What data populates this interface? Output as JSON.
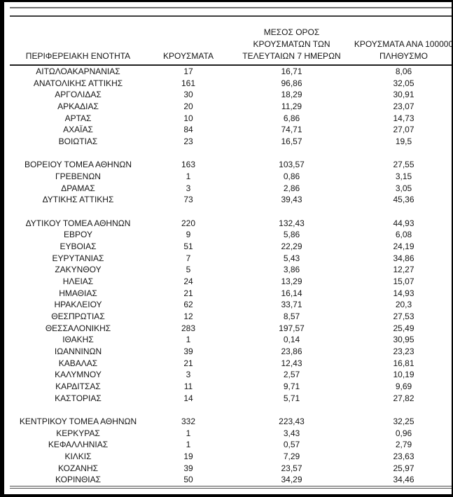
{
  "colors": {
    "frame": "#000000",
    "text": "#151515",
    "rule_light": "#6e6e6e",
    "rule_dark": "#3d3d3d",
    "rule_header": "#1f1f1f",
    "rule_bottom": "#4f4f4f"
  },
  "table": {
    "header": {
      "region": "ΠΕΡΙΦΕΡΕΙΑΚΗ ΕΝΟΤΗΤΑ",
      "cases": "ΚΡΟΥΣΜΑΤΑ",
      "avg7_lines": [
        "ΜΕΣΟΣ ΟΡΟΣ",
        "ΚΡΟΥΣΜΑΤΩΝ ΤΩΝ",
        "ΤΕΛΕΥΤΑΙΩΝ 7 ΗΜΕΡΩΝ"
      ],
      "per100k_lines": [
        "ΚΡΟΥΣΜΑΤΑ ΑΝΑ 100000",
        "ΠΛΗΘΥΣΜΟ"
      ]
    },
    "groups": [
      {
        "rows": [
          {
            "region": "ΑΙΤΩΛΟΑΚΑΡΝΑΝΙΑΣ",
            "cases": "17",
            "avg7": "16,71",
            "per100k": "8,06"
          },
          {
            "region": "ΑΝΑΤΟΛΙΚΗΣ ΑΤΤΙΚΗΣ",
            "cases": "161",
            "avg7": "96,86",
            "per100k": "32,05"
          },
          {
            "region": "ΑΡΓΟΛΙΔΑΣ",
            "cases": "30",
            "avg7": "18,29",
            "per100k": "30,91"
          },
          {
            "region": "ΑΡΚΑΔΙΑΣ",
            "cases": "20",
            "avg7": "11,29",
            "per100k": "23,07"
          },
          {
            "region": "ΑΡΤΑΣ",
            "cases": "10",
            "avg7": "6,86",
            "per100k": "14,73"
          },
          {
            "region": "ΑΧΑΪΑΣ",
            "cases": "84",
            "avg7": "74,71",
            "per100k": "27,07"
          },
          {
            "region": "ΒΟΙΩΤΙΑΣ",
            "cases": "23",
            "avg7": "16,57",
            "per100k": "19,5"
          }
        ]
      },
      {
        "rows": [
          {
            "region": "ΒΟΡΕΙΟΥ ΤΟΜΕΑ ΑΘΗΝΩΝ",
            "cases": "163",
            "avg7": "103,57",
            "per100k": "27,55"
          },
          {
            "region": "ΓΡΕΒΕΝΩΝ",
            "cases": "1",
            "avg7": "0,86",
            "per100k": "3,15"
          },
          {
            "region": "ΔΡΑΜΑΣ",
            "cases": "3",
            "avg7": "2,86",
            "per100k": "3,05"
          },
          {
            "region": "ΔΥΤΙΚΗΣ ΑΤΤΙΚΗΣ",
            "cases": "73",
            "avg7": "39,43",
            "per100k": "45,36"
          }
        ]
      },
      {
        "rows": [
          {
            "region": "ΔΥΤΙΚΟΥ ΤΟΜΕΑ ΑΘΗΝΩΝ",
            "cases": "220",
            "avg7": "132,43",
            "per100k": "44,93"
          },
          {
            "region": "ΕΒΡΟΥ",
            "cases": "9",
            "avg7": "5,86",
            "per100k": "6,08"
          },
          {
            "region": "ΕΥΒΟΙΑΣ",
            "cases": "51",
            "avg7": "22,29",
            "per100k": "24,19"
          },
          {
            "region": "ΕΥΡΥΤΑΝΙΑΣ",
            "cases": "7",
            "avg7": "5,43",
            "per100k": "34,86"
          },
          {
            "region": "ΖΑΚΥΝΘΟΥ",
            "cases": "5",
            "avg7": "3,86",
            "per100k": "12,27"
          },
          {
            "region": "ΗΛΕΙΑΣ",
            "cases": "24",
            "avg7": "13,29",
            "per100k": "15,07"
          },
          {
            "region": "ΗΜΑΘΙΑΣ",
            "cases": "21",
            "avg7": "16,14",
            "per100k": "14,93"
          },
          {
            "region": "ΗΡΑΚΛΕΙΟΥ",
            "cases": "62",
            "avg7": "33,71",
            "per100k": "20,3"
          },
          {
            "region": "ΘΕΣΠΡΩΤΙΑΣ",
            "cases": "12",
            "avg7": "8,57",
            "per100k": "27,53"
          },
          {
            "region": "ΘΕΣΣΑΛΟΝΙΚΗΣ",
            "cases": "283",
            "avg7": "197,57",
            "per100k": "25,49"
          },
          {
            "region": "ΙΘΑΚΗΣ",
            "cases": "1",
            "avg7": "0,14",
            "per100k": "30,95"
          },
          {
            "region": "ΙΩΑΝΝΙΝΩΝ",
            "cases": "39",
            "avg7": "23,86",
            "per100k": "23,23"
          },
          {
            "region": "ΚΑΒΑΛΑΣ",
            "cases": "21",
            "avg7": "12,43",
            "per100k": "16,81"
          },
          {
            "region": "ΚΑΛΥΜΝΟΥ",
            "cases": "3",
            "avg7": "2,57",
            "per100k": "10,19"
          },
          {
            "region": "ΚΑΡΔΙΤΣΑΣ",
            "cases": "11",
            "avg7": "9,71",
            "per100k": "9,69"
          },
          {
            "region": "ΚΑΣΤΟΡΙΑΣ",
            "cases": "14",
            "avg7": "5,71",
            "per100k": "27,82"
          }
        ]
      },
      {
        "rows": [
          {
            "region": "ΚΕΝΤΡΙΚΟΥ ΤΟΜΕΑ ΑΘΗΝΩΝ",
            "cases": "332",
            "avg7": "223,43",
            "per100k": "32,25"
          },
          {
            "region": "ΚΕΡΚΥΡΑΣ",
            "cases": "1",
            "avg7": "3,43",
            "per100k": "0,96"
          },
          {
            "region": "ΚΕΦΑΛΛΗΝΙΑΣ",
            "cases": "1",
            "avg7": "0,57",
            "per100k": "2,79"
          },
          {
            "region": "ΚΙΛΚΙΣ",
            "cases": "19",
            "avg7": "7,29",
            "per100k": "23,63"
          },
          {
            "region": "ΚΟΖΑΝΗΣ",
            "cases": "39",
            "avg7": "23,57",
            "per100k": "25,97"
          },
          {
            "region": "ΚΟΡΙΝΘΙΑΣ",
            "cases": "50",
            "avg7": "34,29",
            "per100k": "34,46"
          }
        ]
      }
    ]
  }
}
